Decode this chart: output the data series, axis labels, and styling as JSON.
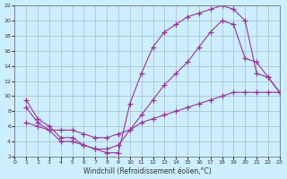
{
  "xlabel": "Windchill (Refroidissement éolien,°C)",
  "background_color": "#cceeff",
  "grid_color": "#aabbcc",
  "line_color": "#993399",
  "xlim": [
    0,
    23
  ],
  "ylim": [
    2,
    22
  ],
  "xticks": [
    0,
    1,
    2,
    3,
    4,
    5,
    6,
    7,
    8,
    9,
    10,
    11,
    12,
    13,
    14,
    15,
    16,
    17,
    18,
    19,
    20,
    21,
    22,
    23
  ],
  "yticks": [
    2,
    4,
    6,
    8,
    10,
    12,
    14,
    16,
    18,
    20,
    22
  ],
  "curve1_x": [
    1,
    2,
    3,
    4,
    5,
    6,
    7,
    8,
    9,
    10,
    11,
    12,
    13,
    14,
    15,
    16,
    17,
    18,
    19,
    20,
    21,
    22,
    23
  ],
  "curve1_y": [
    9.5,
    7.0,
    6.0,
    4.5,
    4.5,
    3.5,
    3.0,
    2.5,
    2.5,
    9.0,
    13.0,
    16.5,
    18.5,
    19.5,
    20.5,
    21.0,
    21.5,
    22.0,
    21.5,
    20.0,
    13.0,
    12.5,
    10.5
  ],
  "curve2_x": [
    1,
    2,
    3,
    4,
    5,
    6,
    7,
    8,
    9,
    10,
    11,
    12,
    13,
    14,
    15,
    16,
    17,
    18,
    19,
    20,
    21,
    22,
    23
  ],
  "curve2_y": [
    8.5,
    6.5,
    5.5,
    4.0,
    4.0,
    3.5,
    3.0,
    3.0,
    3.5,
    5.5,
    7.5,
    9.5,
    11.5,
    13.0,
    14.5,
    16.5,
    18.5,
    20.0,
    19.5,
    15.0,
    14.5,
    12.5,
    10.5
  ],
  "curve3_x": [
    1,
    2,
    3,
    4,
    5,
    6,
    7,
    8,
    9,
    10,
    11,
    12,
    13,
    14,
    15,
    16,
    17,
    18,
    19,
    20,
    21,
    22,
    23
  ],
  "curve3_y": [
    6.5,
    6.0,
    5.5,
    5.5,
    5.5,
    5.0,
    4.5,
    4.5,
    5.0,
    5.5,
    6.5,
    7.0,
    7.5,
    8.0,
    8.5,
    9.0,
    9.5,
    10.0,
    10.5,
    10.5,
    10.5,
    10.5,
    10.5
  ]
}
